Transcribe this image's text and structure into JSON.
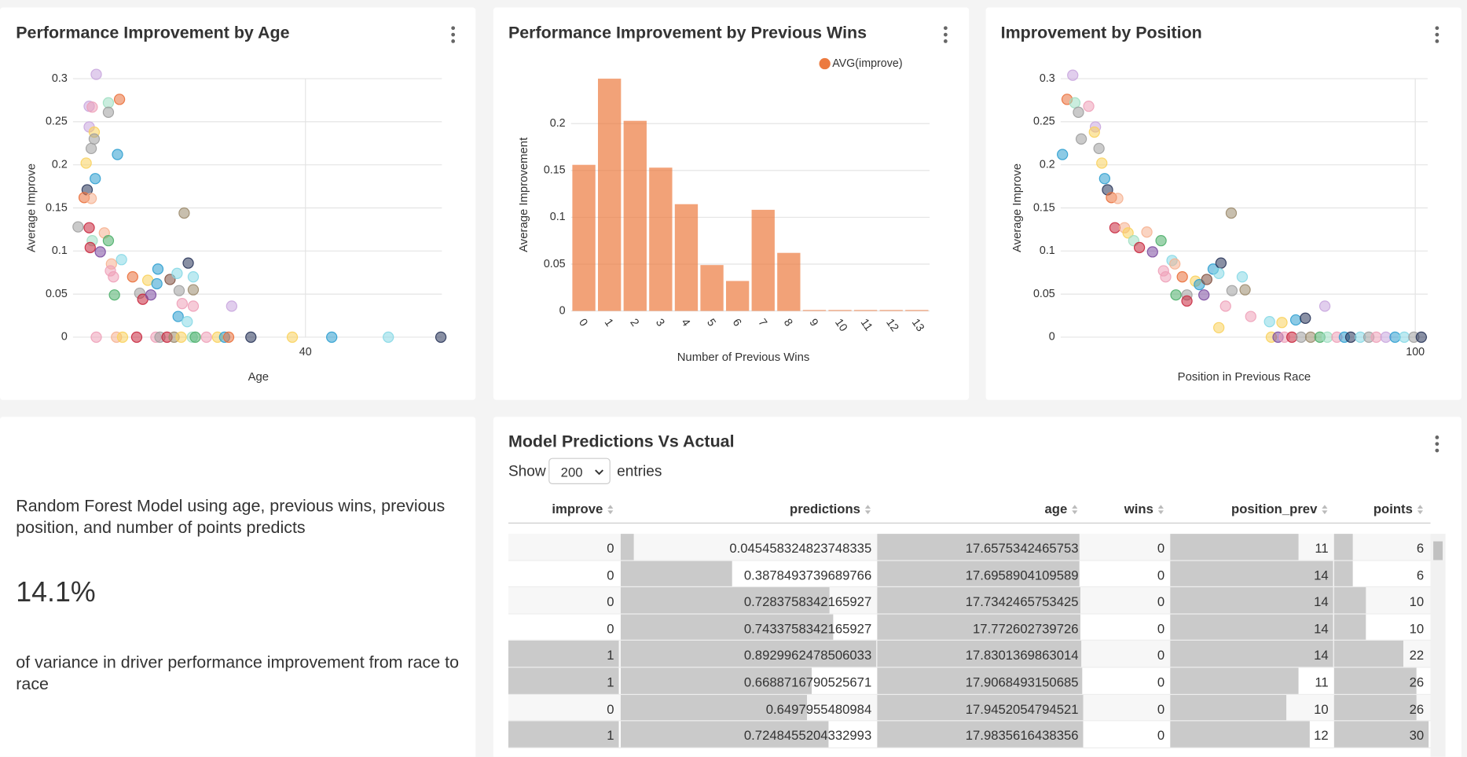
{
  "chart_data": [
    {
      "type": "scatter",
      "title": "Performance Improvement by Age",
      "xlabel": "Age",
      "ylabel": "Average Improve",
      "x": [
        19.3,
        21.6,
        20.5,
        20.5,
        18.6,
        18.9,
        18.6,
        19.1,
        19.1,
        18.8,
        21.4,
        18.3,
        19.2,
        18.4,
        18.1,
        18.8,
        28.0,
        17.5,
        18.6,
        20.1,
        18.9,
        20.5,
        18.7,
        19.7,
        21.8,
        20.8,
        20.7,
        25.4,
        28.4,
        21.0,
        22.9,
        24.4,
        25.3,
        26.6,
        28.9,
        27.3,
        21.1,
        23.6,
        23.9,
        24.7,
        27.5,
        28.9,
        27.8,
        32.7,
        27.4,
        28.3,
        28.9,
        19.3,
        21.3,
        21.9,
        23.3,
        25.2,
        25.6,
        26.3,
        27.0,
        27.7,
        28.8,
        29.1,
        30.2,
        31.3,
        32.0,
        32.4,
        34.6,
        38.7,
        42.6,
        48.2,
        53.4
      ],
      "values": [
        0.305,
        0.276,
        0.272,
        0.261,
        0.268,
        0.267,
        0.244,
        0.238,
        0.23,
        0.219,
        0.212,
        0.202,
        0.184,
        0.171,
        0.162,
        0.161,
        0.144,
        0.128,
        0.127,
        0.121,
        0.112,
        0.112,
        0.104,
        0.099,
        0.09,
        0.085,
        0.077,
        0.079,
        0.086,
        0.07,
        0.07,
        0.066,
        0.062,
        0.067,
        0.07,
        0.074,
        0.049,
        0.051,
        0.044,
        0.049,
        0.054,
        0.055,
        0.039,
        0.036,
        0.024,
        0.018,
        0.036,
        0,
        0,
        0,
        0,
        0,
        0,
        0,
        0,
        0,
        0,
        0,
        0,
        0,
        0,
        0,
        0,
        0,
        0,
        0,
        0
      ],
      "colors": [
        "#c9a6de",
        "#ea6f3a",
        "#9fdfc2",
        "#9e9e9e",
        "#c9a6de",
        "#eea0b8",
        "#c9a6de",
        "#f9d25c",
        "#9e9e9e",
        "#9e9e9e",
        "#2e9fd0",
        "#f9d25c",
        "#2e9fd0",
        "#283459",
        "#ea6f3a",
        "#f6b190",
        "#9b8a6c",
        "#9e9e9e",
        "#c8283e",
        "#f6b190",
        "#9fdfc2",
        "#4daf6a",
        "#c8283e",
        "#7b4ba0",
        "#86d8e6",
        "#f6b190",
        "#eea0b8",
        "#2e9fd0",
        "#283459",
        "#eea0b8",
        "#ea6f3a",
        "#f9d25c",
        "#2e9fd0",
        "#7f4f3f",
        "#86d8e6",
        "#86d8e6",
        "#4daf6a",
        "#9e9e9e",
        "#c8283e",
        "#7b4ba0",
        "#9e9e9e",
        "#9b8a6c",
        "#eea0b8",
        "#c9a6de",
        "#2e9fd0",
        "#86d8e6",
        "#eea0b8",
        "#eea0b8",
        "#f6b190",
        "#f9d25c",
        "#c8283e",
        "#eea0b8",
        "#9e9e9e",
        "#c8283e",
        "#9b8a6c",
        "#f9d25c",
        "#9fdfc2",
        "#4daf6a",
        "#eea0b8",
        "#f9d25c",
        "#2e9fd0",
        "#ea6f3a",
        "#283459",
        "#f9d25c",
        "#2e9fd0",
        "#86d8e6",
        "#283459"
      ],
      "xlim": [
        17,
        53.5
      ],
      "ylim": [
        0,
        0.3
      ],
      "xticks": [
        40
      ],
      "yticks": [
        0,
        0.05,
        0.1,
        0.15,
        0.2,
        0.25,
        0.3
      ],
      "grid": true
    },
    {
      "type": "bar",
      "title": "Performance Improvement by Previous Wins",
      "xlabel": "Number of Previous Wins",
      "ylabel": "Average Improvement",
      "categories": [
        "0",
        "1",
        "2",
        "3",
        "4",
        "5",
        "6",
        "7",
        "8",
        "9",
        "10",
        "11",
        "12",
        "13"
      ],
      "series": [
        {
          "name": "AVG(improve)",
          "color": "#ec7a3f",
          "values": [
            0.156,
            0.248,
            0.203,
            0.153,
            0.114,
            0.049,
            0.032,
            0.108,
            0.062,
            0.001,
            0.001,
            0.001,
            0.001,
            0.001
          ]
        }
      ],
      "ylim": [
        0,
        0.248
      ],
      "yticks": [
        0,
        0.05,
        0.1,
        0.15,
        0.2
      ],
      "grid": true,
      "legend": "top-right"
    },
    {
      "type": "scatter",
      "title": "Improvement by Position",
      "xlabel": "Position in Previous Race",
      "ylabel": "Average Improve",
      "x": [
        3.4,
        1.8,
        4.0,
        5.0,
        7.9,
        9.8,
        9.5,
        5.8,
        10.8,
        0.5,
        11.6,
        12.4,
        13.2,
        14.3,
        16.1,
        48.1,
        15.3,
        18.0,
        19.0,
        20.6,
        28.3,
        24.3,
        22.2,
        25.9,
        31.4,
        32.2,
        29.0,
        43.0,
        45.2,
        29.6,
        34.3,
        38.0,
        39.1,
        41.2,
        51.2,
        44.6,
        32.5,
        35.6,
        35.6,
        40.4,
        48.3,
        52.0,
        46.5,
        74.5,
        58.9,
        44.6,
        53.6,
        66.3,
        69.0,
        62.4,
        59.4,
        61.3,
        63.1,
        65.2,
        67.8,
        70.5,
        73.1,
        75.2,
        77.9,
        80.0,
        81.8,
        84.5,
        86.9,
        89.0,
        91.7,
        94.3,
        96.9,
        99.6,
        101.7
      ],
      "values": [
        0.304,
        0.276,
        0.272,
        0.261,
        0.268,
        0.244,
        0.238,
        0.23,
        0.219,
        0.212,
        0.202,
        0.184,
        0.171,
        0.162,
        0.161,
        0.144,
        0.127,
        0.127,
        0.121,
        0.112,
        0.112,
        0.122,
        0.104,
        0.099,
        0.089,
        0.085,
        0.077,
        0.079,
        0.086,
        0.07,
        0.07,
        0.065,
        0.061,
        0.067,
        0.07,
        0.074,
        0.049,
        0.049,
        0.042,
        0.049,
        0.054,
        0.055,
        0.036,
        0.036,
        0.018,
        0.011,
        0.024,
        0.02,
        0.022,
        0.017,
        0,
        0,
        0,
        0,
        0,
        0,
        0,
        0,
        0,
        0,
        0,
        0,
        0,
        0,
        0,
        0,
        0,
        0,
        0
      ],
      "colors": [
        "#c9a6de",
        "#ea6f3a",
        "#9fdfc2",
        "#9e9e9e",
        "#eea0b8",
        "#c9a6de",
        "#f9d25c",
        "#9e9e9e",
        "#9e9e9e",
        "#2e9fd0",
        "#f9d25c",
        "#2e9fd0",
        "#283459",
        "#ea6f3a",
        "#f6b190",
        "#9b8a6c",
        "#c8283e",
        "#f6b190",
        "#f9d25c",
        "#9fdfc2",
        "#4daf6a",
        "#f6b190",
        "#c8283e",
        "#7b4ba0",
        "#86d8e6",
        "#f6b190",
        "#eea0b8",
        "#2e9fd0",
        "#283459",
        "#eea0b8",
        "#ea6f3a",
        "#f9d25c",
        "#2e9fd0",
        "#7f4f3f",
        "#86d8e6",
        "#86d8e6",
        "#4daf6a",
        "#9e9e9e",
        "#c8283e",
        "#7b4ba0",
        "#9e9e9e",
        "#9b8a6c",
        "#eea0b8",
        "#c9a6de",
        "#86d8e6",
        "#f9d25c",
        "#eea0b8",
        "#2e9fd0",
        "#283459",
        "#f9d25c",
        "#f9d25c",
        "#7b4ba0",
        "#eea0b8",
        "#c8283e",
        "#9e9e9e",
        "#9b8a6c",
        "#4daf6a",
        "#9fdfc2",
        "#eea0b8",
        "#2e9fd0",
        "#283459",
        "#86d8e6",
        "#9e9e9e",
        "#eea0b8",
        "#c9a6de",
        "#2e9fd0",
        "#86d8e6",
        "#9e9e9e",
        "#283459"
      ],
      "xlim": [
        0,
        103.5
      ],
      "ylim": [
        0,
        0.3
      ],
      "xticks": [
        100
      ],
      "yticks": [
        0,
        0.05,
        0.1,
        0.15,
        0.2,
        0.25,
        0.3
      ],
      "grid": true
    }
  ],
  "text_panel": {
    "intro": "Random Forest Model using age, previous wins, previous position, and number of points predicts",
    "stat": "14.1%",
    "outro": "of variance in driver performance improvement from race to race"
  },
  "table": {
    "title": "Model Predictions Vs Actual",
    "show_label": "Show",
    "page_size": "200",
    "entries_label": "entries",
    "columns": [
      "improve",
      "predictions",
      "age",
      "wins",
      "position_prev",
      "points"
    ],
    "rows": [
      [
        0,
        0.045458324823748335,
        17.6575342465753,
        0,
        11,
        6
      ],
      [
        0,
        0.3878493739689766,
        17.6958904109589,
        0,
        14,
        6
      ],
      [
        0,
        0.7283758342165927,
        17.7342465753425,
        0,
        14,
        10
      ],
      [
        0,
        0.7433758342165927,
        17.772602739726,
        0,
        14,
        10
      ],
      [
        1,
        0.8929962478506033,
        17.8301369863014,
        0,
        14,
        22
      ],
      [
        1,
        0.6688716790525671,
        17.9068493150685,
        0,
        11,
        26
      ],
      [
        0,
        0.6497955480984,
        17.9452054794521,
        0,
        10,
        26
      ],
      [
        1,
        0.7248455204332993,
        17.9835616438356,
        0,
        12,
        30
      ]
    ]
  }
}
